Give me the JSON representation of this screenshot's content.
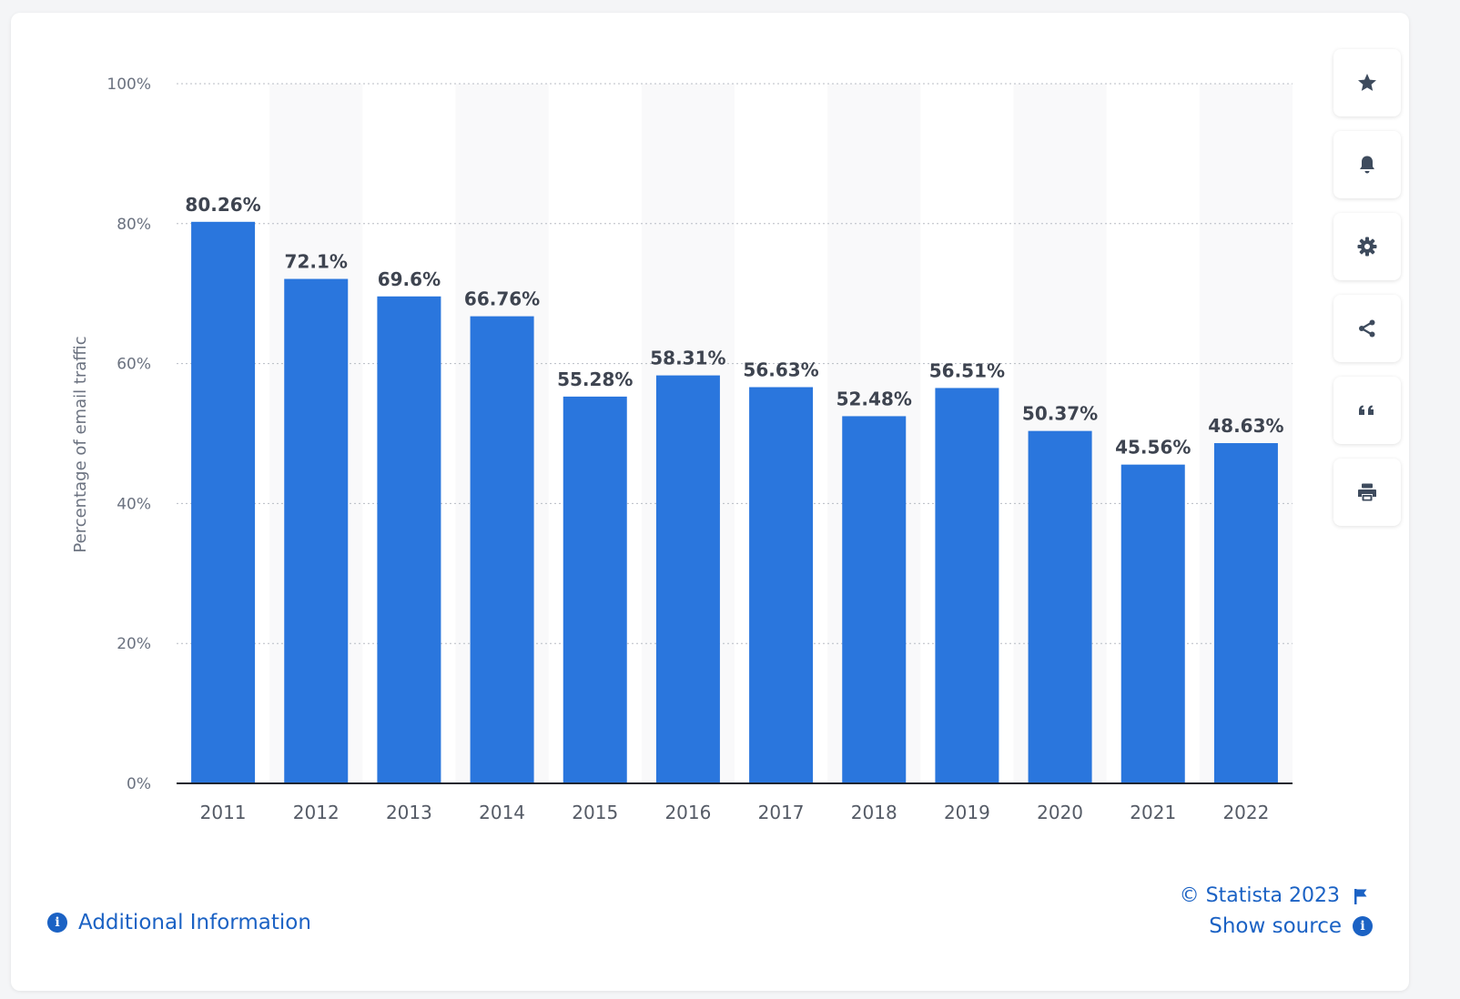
{
  "chart_data": {
    "type": "bar",
    "categories": [
      "2011",
      "2012",
      "2013",
      "2014",
      "2015",
      "2016",
      "2017",
      "2018",
      "2019",
      "2020",
      "2021",
      "2022"
    ],
    "values": [
      80.26,
      72.1,
      69.6,
      66.76,
      55.28,
      58.31,
      56.63,
      52.48,
      56.51,
      50.37,
      45.56,
      48.63
    ],
    "value_labels": [
      "80.26%",
      "72.1%",
      "69.6%",
      "66.76%",
      "55.28%",
      "58.31%",
      "56.63%",
      "52.48%",
      "56.51%",
      "50.37%",
      "45.56%",
      "48.63%"
    ],
    "ylabel": "Percentage of email traffic",
    "xlabel": "",
    "title": "",
    "ylim": [
      0,
      100
    ],
    "yticks": [
      0,
      20,
      40,
      60,
      80,
      100
    ],
    "ytick_labels": [
      "0%",
      "20%",
      "40%",
      "60%",
      "80%",
      "100%"
    ],
    "grid": true,
    "bar_color": "#2a76dd"
  },
  "toolbar": {
    "buttons": [
      {
        "name": "favorite",
        "icon": "star-icon"
      },
      {
        "name": "notification",
        "icon": "bell-icon"
      },
      {
        "name": "settings",
        "icon": "gear-icon"
      },
      {
        "name": "share",
        "icon": "share-icon"
      },
      {
        "name": "cite",
        "icon": "quote-icon"
      },
      {
        "name": "print",
        "icon": "printer-icon"
      }
    ]
  },
  "footer": {
    "additional_info": "Additional Information",
    "copyright": "© Statista 2023",
    "show_source": "Show source",
    "info_glyph": "i"
  },
  "colors": {
    "accent": "#1b62c4",
    "bar": "#2a76dd",
    "icon": "#3e4b5d"
  }
}
